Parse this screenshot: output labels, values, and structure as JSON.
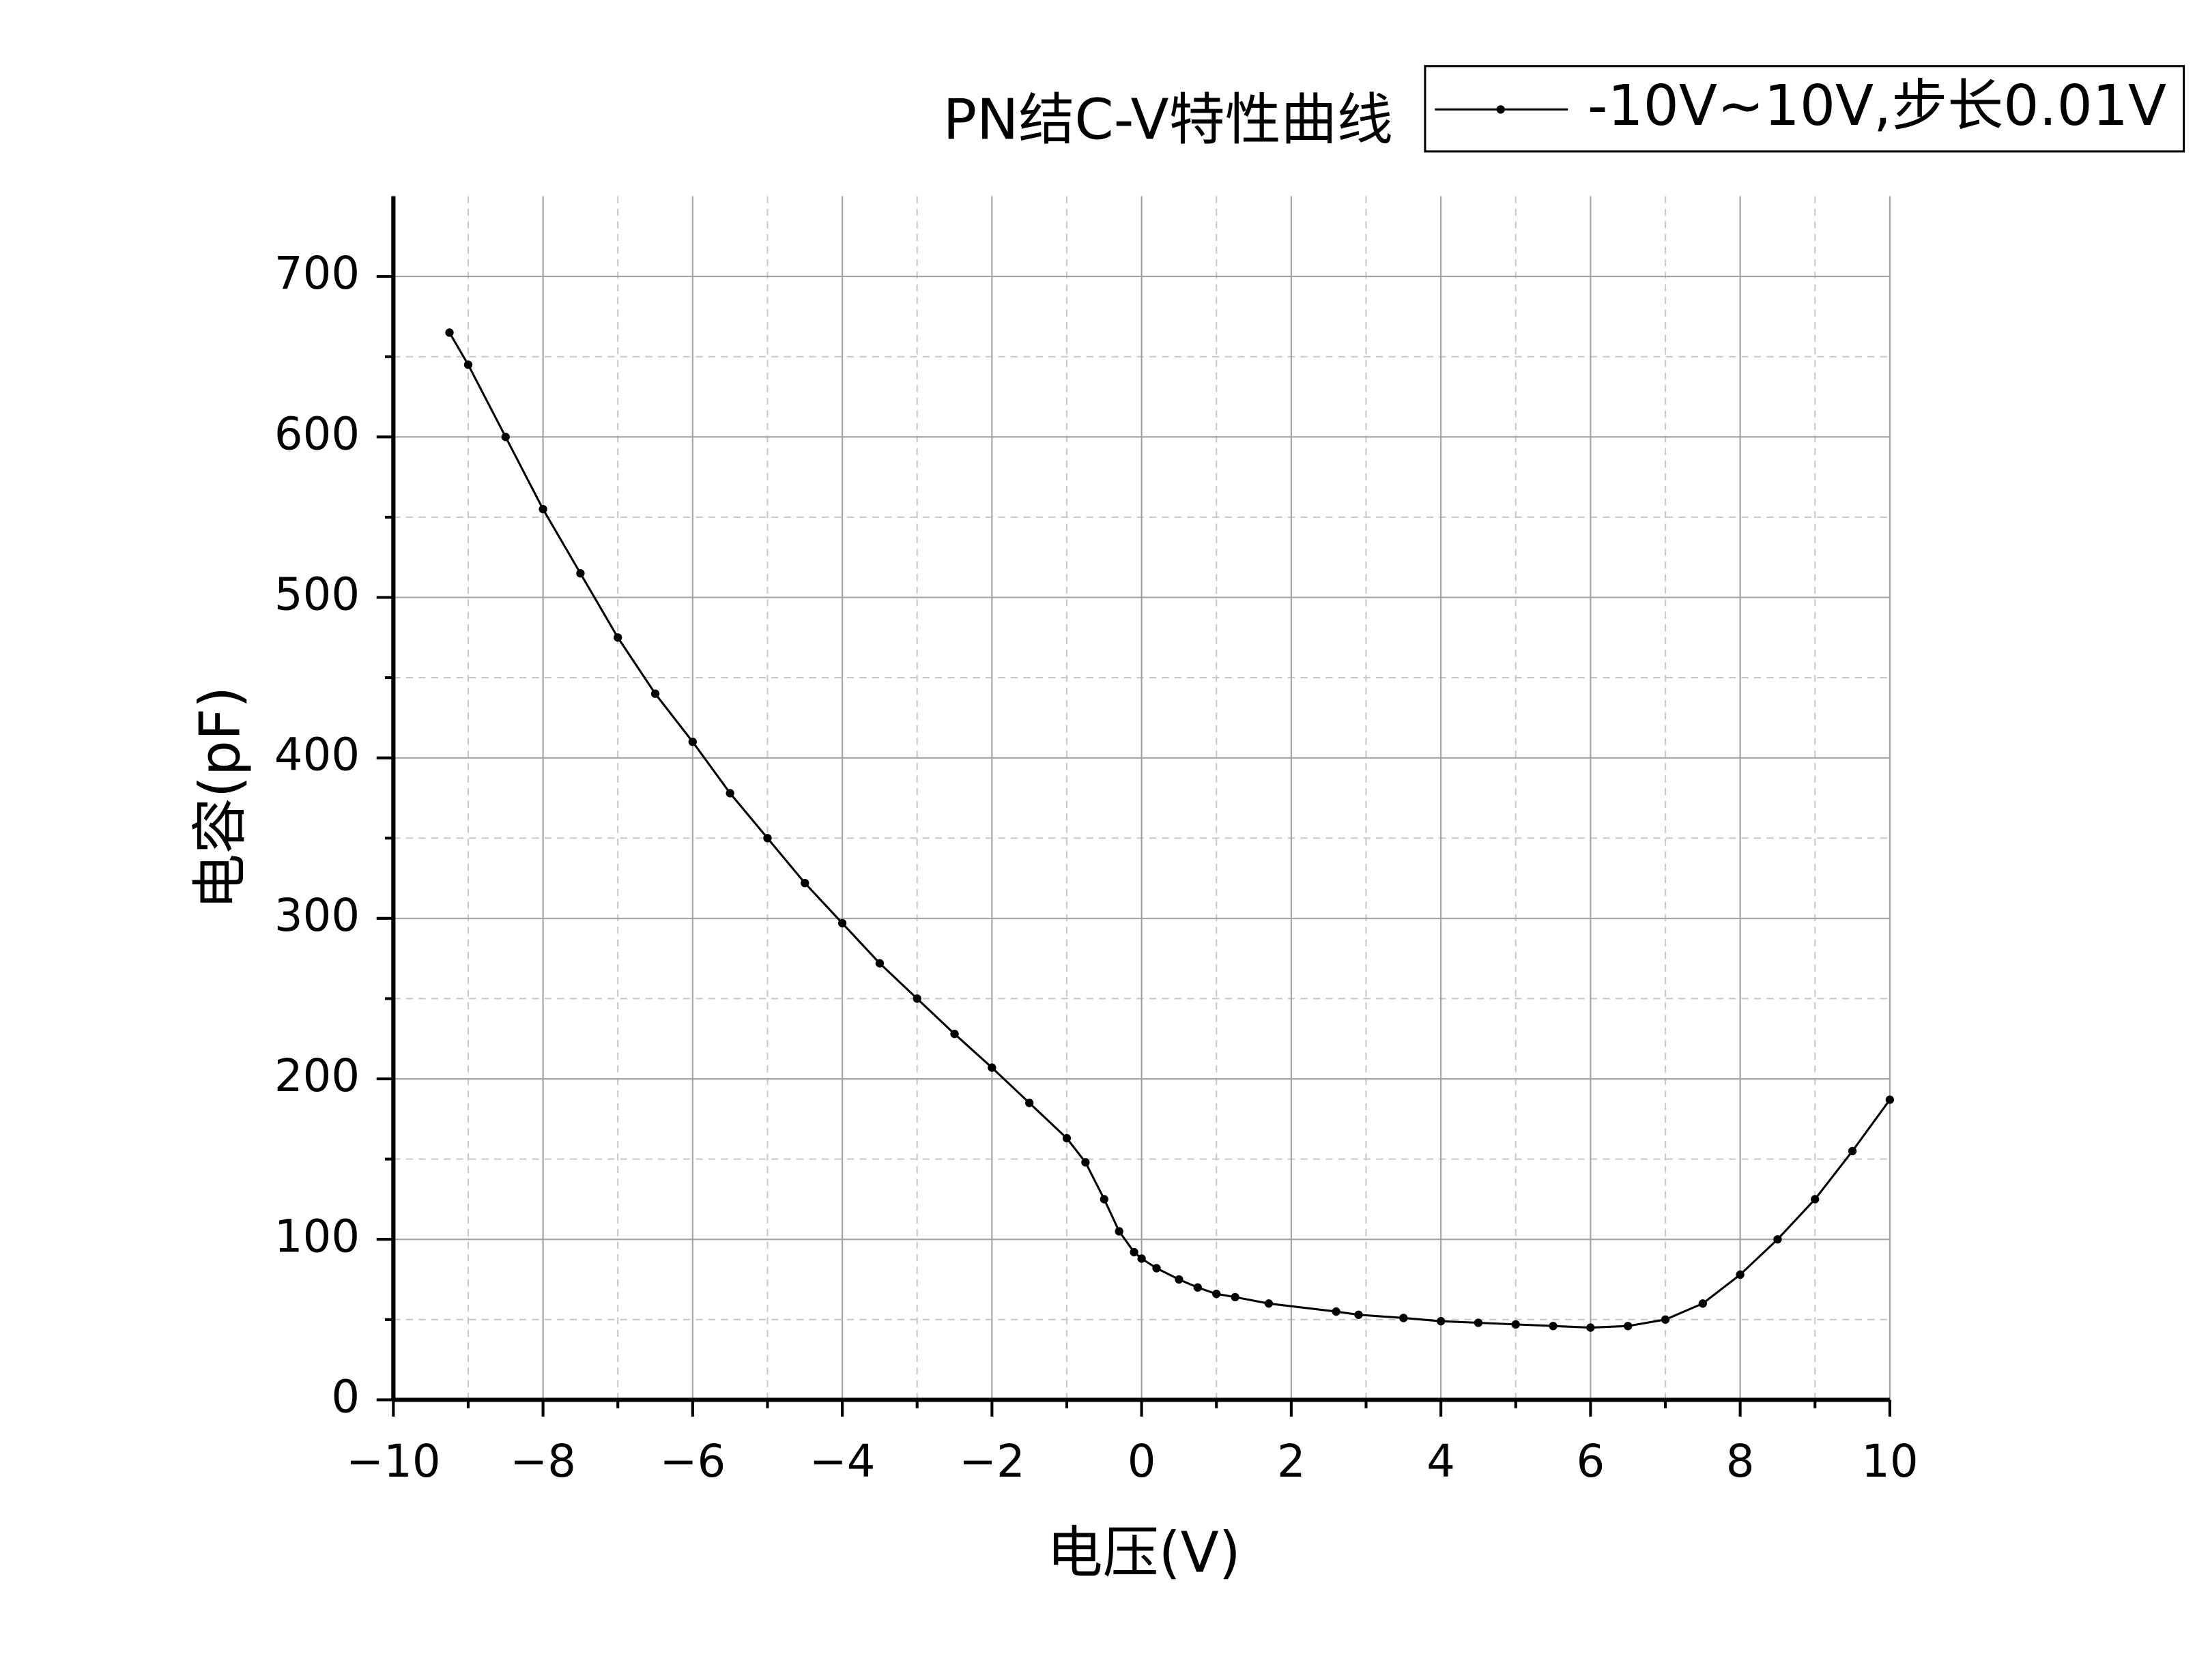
{
  "chart_data": {
    "type": "line",
    "title": "PN结C-V特性曲线",
    "x_label": "电压(V)",
    "y_label": "电容(pF)",
    "x": [
      -9.25,
      -9,
      -8.5,
      -8,
      -7.5,
      -7,
      -6.5,
      -6,
      -5.5,
      -5,
      -4.5,
      -4,
      -3.5,
      -3,
      -2.5,
      -2,
      -1.5,
      -1,
      -0.75,
      -0.5,
      -0.3,
      -0.1,
      0,
      0.2,
      0.5,
      0.75,
      1,
      1.25,
      1.7,
      2.6,
      2.9,
      3.5,
      4,
      4.5,
      5,
      5.5,
      6,
      6.5,
      7,
      7.5,
      8,
      8.5,
      9,
      9.5,
      10
    ],
    "series": [
      {
        "name": "-10V~10V,步长0.01V",
        "color": "#000000",
        "values": [
          665,
          645,
          600,
          555,
          515,
          475,
          440,
          410,
          378,
          350,
          322,
          297,
          272,
          250,
          228,
          207,
          185,
          163,
          148,
          125,
          105,
          92,
          88,
          82,
          75,
          70,
          66,
          64,
          60,
          55,
          53,
          51,
          49,
          48,
          47,
          46,
          45,
          46,
          50,
          60,
          78,
          100,
          125,
          155,
          187
        ]
      }
    ],
    "xlim": [
      -10,
      10
    ],
    "ylim": [
      0,
      750
    ],
    "xticks": [
      {
        "value": -10,
        "label": "−10"
      },
      {
        "value": -8,
        "label": "−8"
      },
      {
        "value": -6,
        "label": "−6"
      },
      {
        "value": -4,
        "label": "−4"
      },
      {
        "value": -2,
        "label": "−2"
      },
      0,
      2,
      4,
      6,
      8,
      10
    ],
    "yticks": [
      0,
      100,
      200,
      300,
      400,
      500,
      600,
      700
    ],
    "xminorticks": [
      -9,
      -7,
      -5,
      -3,
      -1,
      1,
      3,
      5,
      7,
      9
    ],
    "yminorticks": [
      50,
      150,
      250,
      350,
      450,
      550,
      650
    ],
    "grid": true,
    "legend": "top-right"
  }
}
